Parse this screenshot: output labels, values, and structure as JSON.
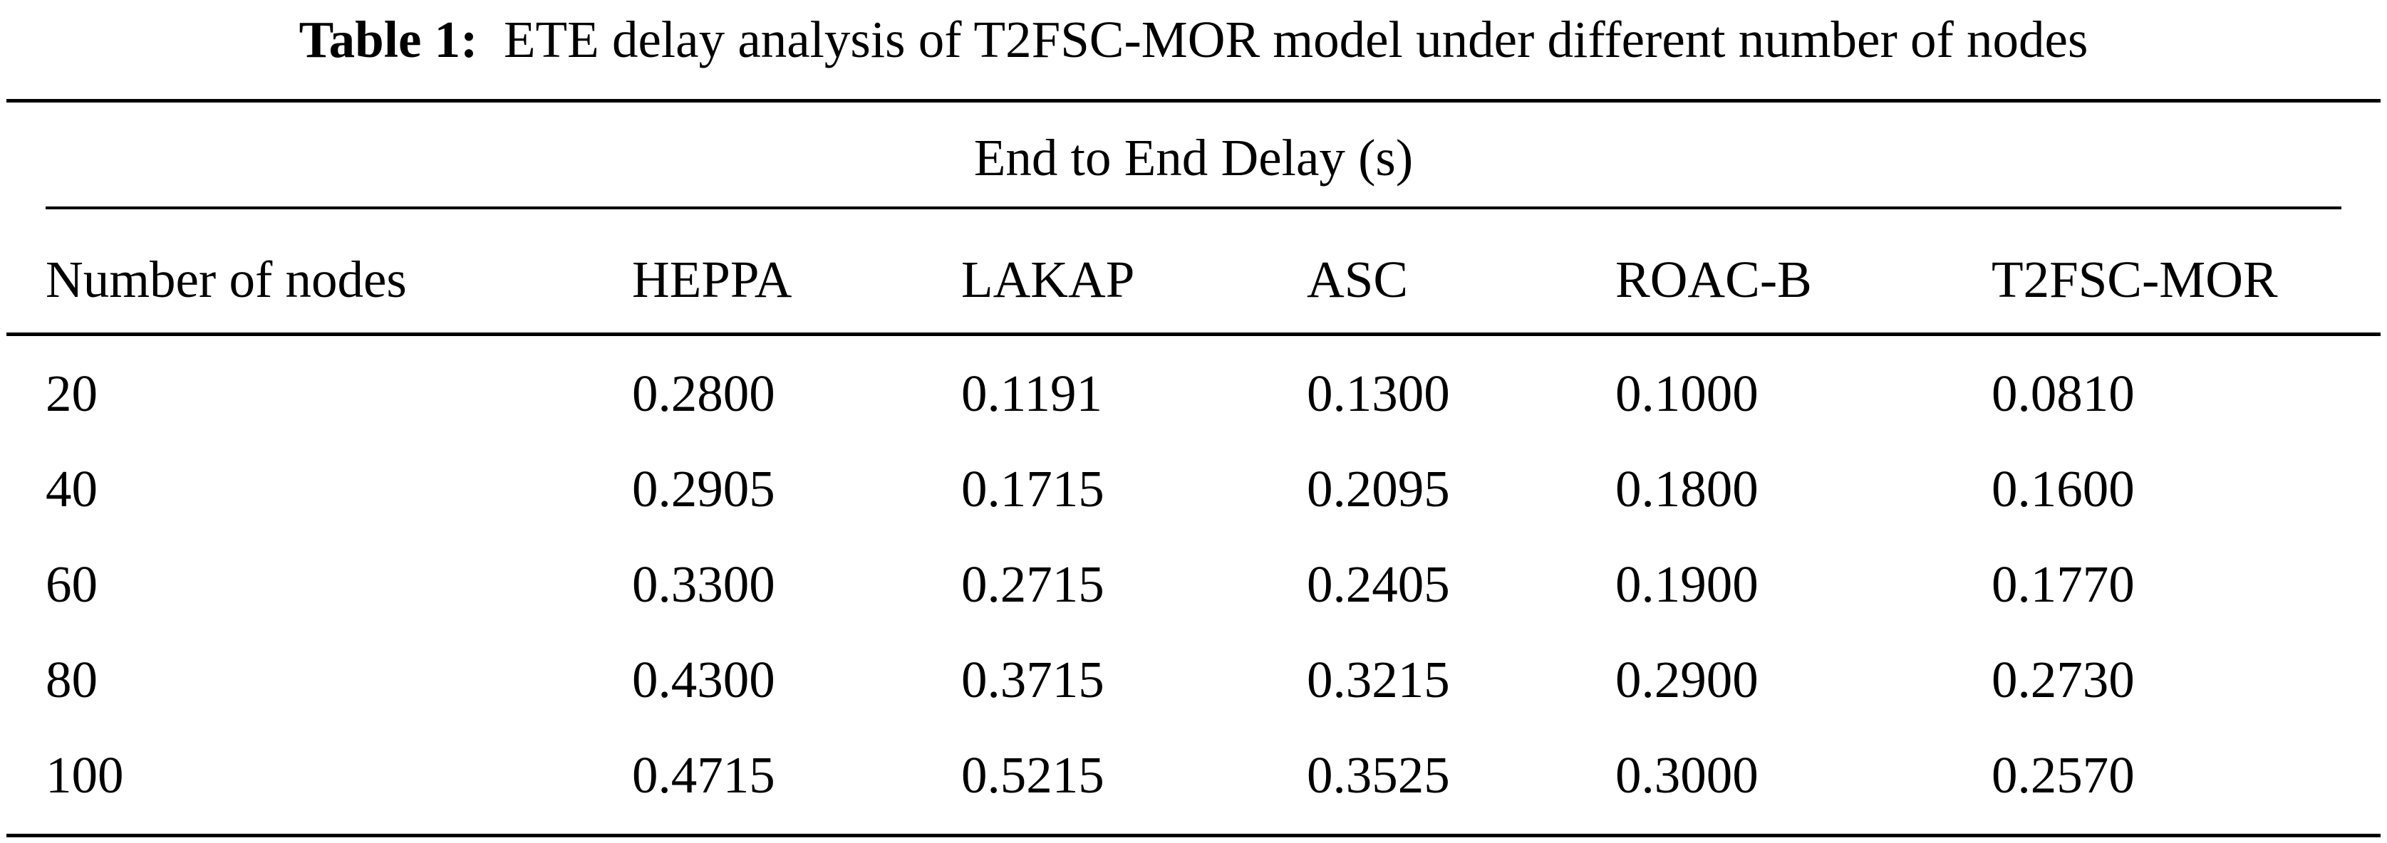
{
  "caption": {
    "label": "Table 1:",
    "text": "ETE delay analysis of T2FSC-MOR model under different number of nodes"
  },
  "table": {
    "group_header": "End to End Delay (s)",
    "columns": [
      "Number of nodes",
      "HEPPA",
      "LAKAP",
      "ASC",
      "ROAC-B",
      "T2FSC-MOR"
    ],
    "rows": [
      [
        "20",
        "0.2800",
        "0.1191",
        "0.1300",
        "0.1000",
        "0.0810"
      ],
      [
        "40",
        "0.2905",
        "0.1715",
        "0.2095",
        "0.1800",
        "0.1600"
      ],
      [
        "60",
        "0.3300",
        "0.2715",
        "0.2405",
        "0.1900",
        "0.1770"
      ],
      [
        "80",
        "0.4300",
        "0.3715",
        "0.3215",
        "0.2900",
        "0.2730"
      ],
      [
        "100",
        "0.4715",
        "0.5215",
        "0.3525",
        "0.3000",
        "0.2570"
      ]
    ]
  }
}
